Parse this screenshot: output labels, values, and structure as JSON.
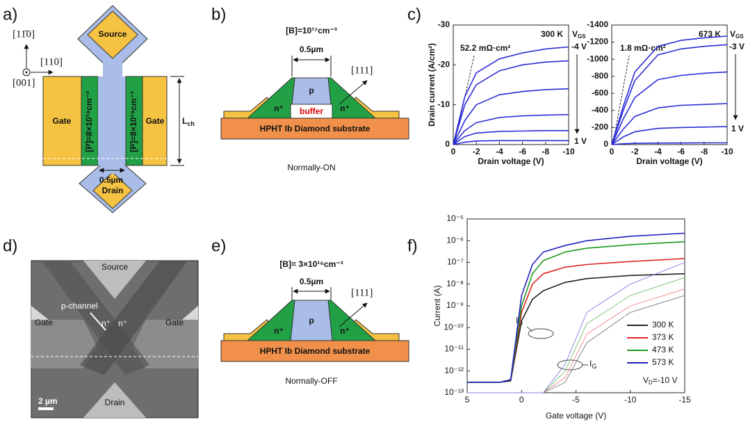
{
  "panels": {
    "a": {
      "label": "a)",
      "directions": [
        "[11̄0]",
        "[110]",
        "[001]"
      ],
      "source": "Source",
      "drain": "Drain",
      "gate_left": "Gate",
      "gate_right": "Gate",
      "doping_left": "[P]=8×10¹⁹cm⁻³",
      "doping_right": "[P]=8×10¹⁹cm⁻³",
      "width": "0.5µm",
      "length": {
        "base": "L",
        "sub": "ch"
      }
    },
    "b": {
      "label": "b)",
      "doping": "[B]=10¹⁷cm⁻³",
      "width": "0.5µm",
      "p": "p",
      "n_left": "n⁺",
      "n_right": "n⁺",
      "buffer": "buffer",
      "substrate": "HPHT Ib Diamond substrate",
      "direction": "[111]",
      "caption": "Normally-ON"
    },
    "c": {
      "label": "c)"
    },
    "d": {
      "label": "d)",
      "source": "Source",
      "drain": "Drain",
      "gate_left": "Gate",
      "gate_right": "Gate",
      "channel": "p-channel",
      "n_left": "n⁺",
      "n_right": "n⁺",
      "scale": "2 µm"
    },
    "e": {
      "label": "e)",
      "doping": "[B]= 3×10¹⁶cm⁻³",
      "width": "0.5µm",
      "p": "p",
      "n_left": "n⁺",
      "n_right": "n⁺",
      "substrate": "HPHT Ib Diamond substrate",
      "direction": "[111]",
      "caption": "Normally-OFF"
    },
    "f": {
      "label": "f)"
    }
  },
  "chart_data": [
    {
      "type": "line",
      "ylabel": "Drain current (A/cm²)",
      "xlabel": "Drain voltage (V)",
      "color": "#2a2ad6",
      "x": [
        0,
        -1,
        -2,
        -4,
        -6,
        -8,
        -10
      ],
      "xlim": [
        0,
        -10
      ],
      "xticks": [
        0,
        -2,
        -4,
        -6,
        -8,
        -10
      ],
      "ylim": [
        0,
        -30
      ],
      "yticks": [
        0,
        -10,
        -20,
        -30
      ],
      "series": [
        {
          "values": [
            0,
            -12,
            -18,
            -21.5,
            -23,
            -24,
            -24.5
          ]
        },
        {
          "values": [
            0,
            -10,
            -15,
            -18.5,
            -20,
            -20.7,
            -21
          ]
        },
        {
          "values": [
            0,
            -6,
            -10,
            -12.5,
            -13.3,
            -13.8,
            -14
          ]
        },
        {
          "values": [
            0,
            -3.5,
            -5.5,
            -6.8,
            -7.2,
            -7.4,
            -7.5
          ]
        },
        {
          "values": [
            0,
            -2,
            -2.9,
            -3.3,
            -3.4,
            -3.5,
            -3.5
          ]
        },
        {
          "values": [
            0,
            -0.6,
            -0.9,
            -1,
            -1,
            -1,
            -1
          ]
        }
      ],
      "annotations": {
        "resistance": "52.2 mΩ·cm²",
        "temperature": "300 K",
        "vgs": {
          "base": "V",
          "sub": "GS"
        },
        "vgs_top": "-4 V",
        "vgs_bottom": "1 V"
      }
    },
    {
      "type": "line",
      "xlabel": "Drain voltage (V)",
      "color": "#2a2ad6",
      "x": [
        0,
        -1,
        -2,
        -4,
        -6,
        -8,
        -10
      ],
      "xlim": [
        0,
        -10
      ],
      "xticks": [
        0,
        -2,
        -4,
        -6,
        -8,
        -10
      ],
      "ylim": [
        0,
        -1400
      ],
      "yticks": [
        0,
        -200,
        -400,
        -600,
        -800,
        -1000,
        -1200,
        -1400
      ],
      "series": [
        {
          "values": [
            0,
            -450,
            -850,
            -1150,
            -1220,
            -1250,
            -1270
          ]
        },
        {
          "values": [
            0,
            -400,
            -750,
            -1050,
            -1120,
            -1150,
            -1170
          ]
        },
        {
          "values": [
            0,
            -300,
            -550,
            -760,
            -810,
            -835,
            -850
          ]
        },
        {
          "values": [
            0,
            -180,
            -330,
            -430,
            -460,
            -470,
            -480
          ]
        },
        {
          "values": [
            0,
            -90,
            -150,
            -190,
            -200,
            -205,
            -210
          ]
        },
        {
          "values": [
            0,
            -10,
            -15,
            -18,
            -19,
            -20,
            -20
          ]
        }
      ],
      "annotations": {
        "resistance": "1.8 mΩ·cm²",
        "temperature": "673 K",
        "vgs": {
          "base": "V",
          "sub": "GS"
        },
        "vgs_top": "-3 V",
        "vgs_bottom": "1 V"
      }
    },
    {
      "type": "line",
      "log_y": true,
      "ylabel": "Current (A)",
      "xlabel": "Gate voltage (V)",
      "legend": "lower right",
      "x": [
        5,
        2,
        1,
        0,
        -1,
        -2,
        -4,
        -6,
        -10,
        -15
      ],
      "xlim": [
        5,
        -15
      ],
      "xticks": [
        5,
        0,
        -5,
        -10,
        -15
      ],
      "ylim": [
        1e-13,
        1e-05
      ],
      "yticks": [
        {
          "value": 1e-13,
          "label": "10⁻¹³"
        },
        {
          "value": 1e-12,
          "label": "10⁻¹²"
        },
        {
          "value": 1e-11,
          "label": "10⁻¹¹"
        },
        {
          "value": 1e-10,
          "label": "10⁻¹⁰"
        },
        {
          "value": 1e-09,
          "label": "10⁻⁹"
        },
        {
          "value": 1e-08,
          "label": "10⁻⁸"
        },
        {
          "value": 1e-07,
          "label": "10⁻⁷"
        },
        {
          "value": 1e-06,
          "label": "10⁻⁶"
        },
        {
          "value": 1e-05,
          "label": "10⁻⁵"
        }
      ],
      "series": [
        {
          "name": "300 K",
          "color": "#222222",
          "values": [
            3e-13,
            3e-13,
            3.5e-13,
            2e-10,
            2e-09,
            5e-09,
            1.2e-08,
            1.8e-08,
            2.5e-08,
            3e-08
          ]
        },
        {
          "name": "373 K",
          "color": "#e02020",
          "values": [
            3e-13,
            3e-13,
            4e-13,
            5e-10,
            1e-08,
            3e-08,
            6e-08,
            8e-08,
            1.1e-07,
            1.5e-07
          ]
        },
        {
          "name": "473 K",
          "color": "#1a9a1a",
          "values": [
            3e-13,
            3e-13,
            4e-13,
            1e-09,
            3e-08,
            1.2e-07,
            3e-07,
            4.5e-07,
            6.5e-07,
            9e-07
          ]
        },
        {
          "name": "573 K",
          "color": "#2020c0",
          "values": [
            3e-13,
            3e-13,
            4e-13,
            3e-09,
            8e-08,
            3e-07,
            6e-07,
            1e-06,
            1.6e-06,
            2.2e-06
          ]
        },
        {
          "color": "#777777",
          "values": [
            1e-13,
            1e-13,
            1e-13,
            1e-13,
            1e-13,
            1e-13,
            3e-13,
            2e-11,
            5e-10,
            3e-09
          ]
        },
        {
          "color": "#f08080",
          "values": [
            1e-13,
            1e-13,
            1e-13,
            1e-13,
            1e-13,
            1e-13,
            5e-13,
            5e-11,
            1e-09,
            6e-09
          ]
        },
        {
          "color": "#70c070",
          "values": [
            1e-13,
            1e-13,
            1e-13,
            1e-13,
            1e-13,
            1e-13,
            1e-12,
            1.5e-10,
            3e-09,
            2e-08
          ]
        },
        {
          "color": "#8080e0",
          "values": [
            1e-13,
            1e-13,
            1e-13,
            1e-13,
            1e-13,
            1e-13,
            2e-12,
            5e-10,
            1e-08,
            1e-07
          ]
        }
      ],
      "annotations": {
        "id": {
          "base": "I",
          "sub": "D"
        },
        "ig": {
          "base": "I",
          "sub": "G"
        },
        "vd": {
          "base": "V",
          "sub": "D",
          "rest": "=-10 V"
        }
      }
    }
  ]
}
